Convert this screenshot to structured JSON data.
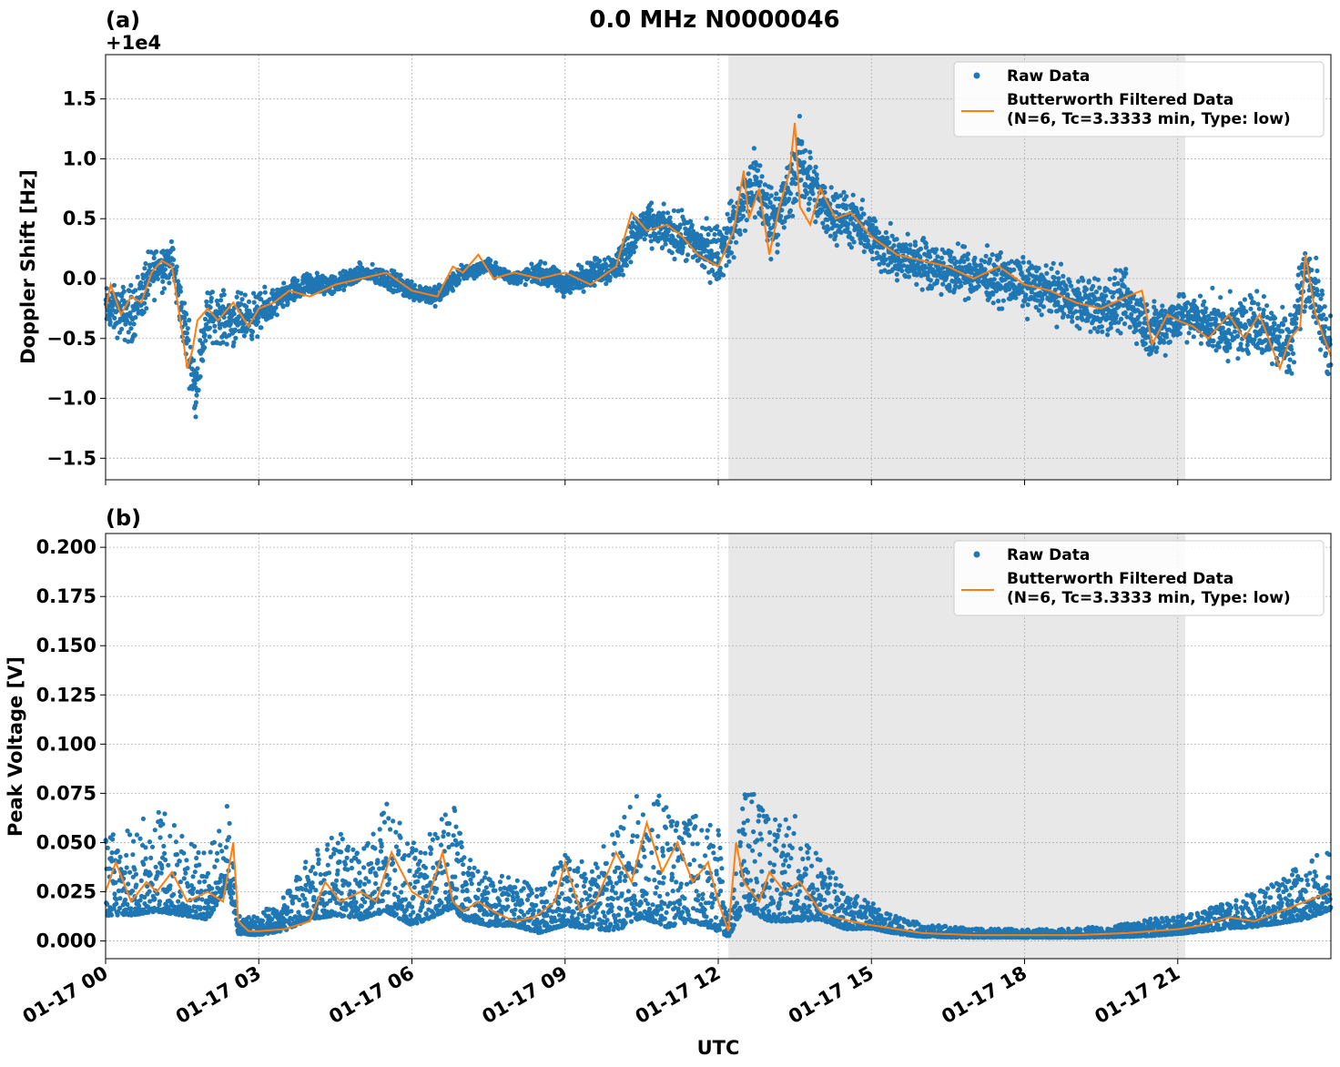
{
  "figure": {
    "title": "0.0 MHz N0000046",
    "xlabel": "UTC",
    "xticks": [
      "01-17 00",
      "01-17 03",
      "01-17 06",
      "01-17 09",
      "01-17 12",
      "01-17 15",
      "01-17 18",
      "01-17 21"
    ],
    "colors": {
      "raw": "#1f77b4",
      "filtered": "#ff7f0e",
      "shade": "#e8e8e8"
    },
    "legend_position": "top-right"
  },
  "chart_data": [
    {
      "type": "scatter",
      "panel_label": "(a)",
      "offset_text": "+1e4",
      "ylabel": "Doppler Shift [Hz]",
      "xlabel": "UTC",
      "xlim_hours": [
        0,
        24
      ],
      "ylim": [
        -1.68,
        1.87
      ],
      "yticks": [
        1.5,
        1.0,
        0.5,
        0.0,
        -0.5,
        -1.0,
        -1.5
      ],
      "ytick_labels": [
        "1.5",
        "1.0",
        "0.5",
        "0.0",
        "−0.5",
        "−1.0",
        "−1.5"
      ],
      "grid": true,
      "shaded_interval_hours": [
        12.2,
        21.15
      ],
      "legend": [
        {
          "label": "Raw Data",
          "marker": "dot",
          "color": "#1f77b4"
        },
        {
          "label": "Butterworth Filtered Data",
          "label2": "(N=6, Tc=3.3333 min, Type: low)",
          "marker": "line",
          "color": "#ff7f0e"
        }
      ],
      "series": [
        {
          "name": "Raw Data",
          "x_hours": [
            0,
            0.5,
            1,
            1.3,
            1.6,
            1.75,
            2,
            2.5,
            3,
            3.5,
            4,
            4.5,
            5,
            5.5,
            6,
            6.5,
            7,
            7.5,
            8,
            8.5,
            9,
            9.5,
            10,
            10.5,
            11,
            11.5,
            12,
            12.2,
            12.5,
            12.7,
            13,
            13.3,
            13.6,
            14,
            14.5,
            15,
            15.5,
            16,
            16.5,
            17,
            17.5,
            18,
            18.5,
            19,
            19.5,
            20,
            20.5,
            21,
            21.5,
            22,
            22.5,
            23,
            23.2,
            23.5,
            24
          ],
          "center": [
            -0.25,
            -0.3,
            0.1,
            0.15,
            -0.5,
            -0.95,
            -0.3,
            -0.35,
            -0.3,
            -0.15,
            -0.05,
            -0.05,
            0.05,
            0.0,
            -0.1,
            -0.15,
            0.05,
            0.1,
            0.0,
            0.05,
            -0.05,
            0.05,
            0.1,
            0.45,
            0.4,
            0.3,
            0.2,
            0.35,
            0.6,
            0.85,
            0.5,
            0.6,
            1.0,
            0.6,
            0.5,
            0.35,
            0.15,
            0.15,
            0.05,
            0.05,
            0.0,
            -0.05,
            -0.1,
            -0.2,
            -0.25,
            -0.2,
            -0.45,
            -0.3,
            -0.35,
            -0.45,
            -0.35,
            -0.5,
            -0.55,
            0.1,
            -0.6
          ],
          "spread": [
            0.25,
            0.35,
            0.3,
            0.25,
            0.35,
            0.3,
            0.3,
            0.3,
            0.25,
            0.15,
            0.15,
            0.12,
            0.1,
            0.12,
            0.12,
            0.12,
            0.1,
            0.08,
            0.08,
            0.12,
            0.15,
            0.15,
            0.2,
            0.25,
            0.25,
            0.3,
            0.35,
            0.35,
            0.4,
            0.45,
            0.4,
            0.45,
            0.45,
            0.35,
            0.3,
            0.3,
            0.3,
            0.28,
            0.28,
            0.28,
            0.3,
            0.3,
            0.3,
            0.3,
            0.35,
            0.35,
            0.35,
            0.3,
            0.3,
            0.35,
            0.35,
            0.4,
            0.4,
            0.45,
            0.45
          ]
        },
        {
          "name": "Butterworth Filtered Data",
          "x_hours": [
            0,
            0.1,
            0.3,
            0.5,
            0.7,
            0.9,
            1.1,
            1.3,
            1.5,
            1.6,
            1.7,
            1.8,
            2,
            2.2,
            2.5,
            2.8,
            3,
            3.3,
            3.6,
            4,
            4.5,
            5,
            5.5,
            6,
            6.5,
            6.8,
            7,
            7.3,
            7.6,
            8,
            8.5,
            9,
            9.5,
            10,
            10.3,
            10.6,
            11,
            11.3,
            11.6,
            12,
            12.3,
            12.5,
            12.6,
            12.8,
            13,
            13.2,
            13.4,
            13.5,
            13.6,
            13.8,
            14,
            14.3,
            14.6,
            15,
            15.5,
            16,
            16.5,
            17,
            17.5,
            18,
            18.5,
            19,
            19.5,
            20,
            20.3,
            20.5,
            20.8,
            21,
            21.3,
            21.6,
            22,
            22.3,
            22.6,
            23,
            23.2,
            23.4,
            23.5,
            23.7,
            24
          ],
          "values": [
            -0.25,
            -0.05,
            -0.3,
            -0.15,
            -0.2,
            0.05,
            0.15,
            0.1,
            -0.45,
            -0.75,
            -0.6,
            -0.35,
            -0.25,
            -0.35,
            -0.2,
            -0.4,
            -0.25,
            -0.2,
            -0.1,
            -0.15,
            -0.05,
            0.0,
            0.05,
            -0.1,
            -0.15,
            0.1,
            0.05,
            0.2,
            0.0,
            0.05,
            0.0,
            0.05,
            -0.05,
            0.1,
            0.55,
            0.4,
            0.45,
            0.35,
            0.2,
            0.1,
            0.4,
            0.9,
            0.5,
            0.75,
            0.2,
            0.6,
            0.9,
            1.3,
            0.6,
            0.45,
            0.75,
            0.5,
            0.55,
            0.35,
            0.2,
            0.15,
            0.1,
            0.0,
            0.1,
            -0.05,
            -0.1,
            -0.2,
            -0.25,
            -0.15,
            -0.1,
            -0.55,
            -0.3,
            -0.35,
            -0.4,
            -0.5,
            -0.3,
            -0.5,
            -0.3,
            -0.75,
            -0.5,
            -0.4,
            0.2,
            -0.3,
            -0.65
          ]
        }
      ]
    },
    {
      "type": "scatter",
      "panel_label": "(b)",
      "ylabel": "Peak Voltage [V]",
      "xlabel": "UTC",
      "xlim_hours": [
        0,
        24
      ],
      "ylim": [
        -0.009,
        0.207
      ],
      "yticks": [
        0.2,
        0.175,
        0.15,
        0.125,
        0.1,
        0.075,
        0.05,
        0.025,
        0.0
      ],
      "ytick_labels": [
        "0.200",
        "0.175",
        "0.150",
        "0.125",
        "0.100",
        "0.075",
        "0.050",
        "0.025",
        "0.000"
      ],
      "grid": true,
      "shaded_interval_hours": [
        12.2,
        21.15
      ],
      "legend": [
        {
          "label": "Raw Data",
          "marker": "dot",
          "color": "#1f77b4"
        },
        {
          "label": "Butterworth Filtered Data",
          "label2": "(N=6, Tc=3.3333 min, Type: low)",
          "marker": "line",
          "color": "#ff7f0e"
        }
      ],
      "series": [
        {
          "name": "Raw Data",
          "x_hours": [
            0,
            0.5,
            1,
            1.5,
            2,
            2.4,
            2.6,
            3,
            3.5,
            4,
            4.5,
            5,
            5.5,
            6,
            6.5,
            6.8,
            7,
            7.5,
            8,
            8.5,
            9,
            9.5,
            10,
            10.5,
            11,
            11.5,
            12,
            12.2,
            12.5,
            13,
            13.5,
            14,
            14.5,
            15,
            15.5,
            16,
            17,
            18,
            19,
            20,
            20.5,
            21,
            21.5,
            22,
            22.5,
            23,
            23.5,
            24
          ],
          "center": [
            0.025,
            0.025,
            0.03,
            0.025,
            0.02,
            0.04,
            0.006,
            0.006,
            0.01,
            0.02,
            0.025,
            0.02,
            0.03,
            0.02,
            0.025,
            0.035,
            0.02,
            0.015,
            0.015,
            0.01,
            0.02,
            0.015,
            0.02,
            0.03,
            0.025,
            0.025,
            0.02,
            0.005,
            0.035,
            0.025,
            0.025,
            0.02,
            0.012,
            0.01,
            0.006,
            0.004,
            0.003,
            0.003,
            0.003,
            0.004,
            0.005,
            0.006,
            0.008,
            0.01,
            0.012,
            0.015,
            0.02,
            0.025
          ],
          "spread": [
            0.02,
            0.02,
            0.025,
            0.02,
            0.015,
            0.02,
            0.004,
            0.005,
            0.008,
            0.015,
            0.02,
            0.015,
            0.025,
            0.02,
            0.02,
            0.03,
            0.015,
            0.012,
            0.012,
            0.01,
            0.02,
            0.015,
            0.025,
            0.03,
            0.03,
            0.025,
            0.025,
            0.005,
            0.03,
            0.025,
            0.025,
            0.015,
            0.01,
            0.006,
            0.004,
            0.003,
            0.002,
            0.002,
            0.002,
            0.003,
            0.004,
            0.004,
            0.005,
            0.006,
            0.008,
            0.01,
            0.015,
            0.015
          ]
        },
        {
          "name": "Butterworth Filtered Data",
          "x_hours": [
            0,
            0.2,
            0.5,
            0.8,
            1,
            1.3,
            1.6,
            2,
            2.3,
            2.5,
            2.6,
            2.8,
            3,
            3.5,
            4,
            4.3,
            4.6,
            5,
            5.3,
            5.6,
            6,
            6.3,
            6.6,
            6.8,
            7,
            7.3,
            7.6,
            8,
            8.4,
            8.8,
            9,
            9.3,
            9.6,
            10,
            10.3,
            10.6,
            10.9,
            11.2,
            11.5,
            11.8,
            12,
            12.2,
            12.35,
            12.5,
            12.8,
            13,
            13.3,
            13.6,
            14,
            14.3,
            14.6,
            15,
            15.5,
            16,
            17,
            18,
            19,
            20,
            20.5,
            21,
            21.5,
            22,
            22.5,
            23,
            23.5,
            24
          ],
          "values": [
            0.025,
            0.04,
            0.02,
            0.03,
            0.025,
            0.035,
            0.02,
            0.025,
            0.02,
            0.05,
            0.01,
            0.005,
            0.005,
            0.006,
            0.01,
            0.03,
            0.02,
            0.025,
            0.02,
            0.045,
            0.025,
            0.02,
            0.045,
            0.02,
            0.015,
            0.02,
            0.015,
            0.01,
            0.012,
            0.02,
            0.04,
            0.015,
            0.02,
            0.045,
            0.03,
            0.06,
            0.035,
            0.05,
            0.03,
            0.04,
            0.02,
            0.005,
            0.05,
            0.03,
            0.02,
            0.035,
            0.025,
            0.03,
            0.015,
            0.012,
            0.01,
            0.008,
            0.006,
            0.004,
            0.003,
            0.003,
            0.003,
            0.004,
            0.005,
            0.006,
            0.008,
            0.012,
            0.01,
            0.015,
            0.02,
            0.025
          ]
        }
      ]
    }
  ]
}
